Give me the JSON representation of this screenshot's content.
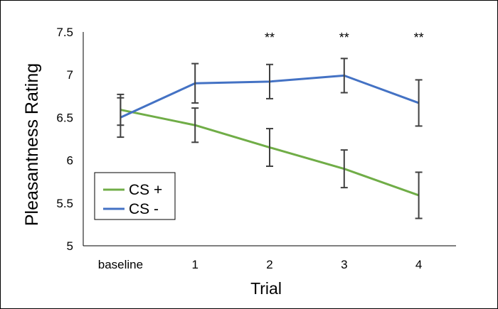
{
  "chart_data": {
    "type": "line",
    "title": "",
    "xlabel": "Trial",
    "ylabel": "Pleasantness Rating",
    "categories": [
      "baseline",
      "1",
      "2",
      "3",
      "4"
    ],
    "ylim": [
      5,
      7.5
    ],
    "yticks": [
      5,
      5.5,
      6,
      6.5,
      7,
      7.5
    ],
    "ytick_labels": [
      "5",
      "5.5",
      "6",
      "6.5",
      "7",
      "7.5"
    ],
    "grid": false,
    "legend_position": "bottom-left",
    "series": [
      {
        "name": "CS +",
        "color": "#70AD47",
        "values": [
          6.59,
          6.41,
          6.15,
          5.9,
          5.59
        ],
        "error": [
          0.18,
          0.2,
          0.22,
          0.22,
          0.27
        ]
      },
      {
        "name": "CS -",
        "color": "#4472C4",
        "values": [
          6.5,
          6.9,
          6.92,
          6.99,
          6.67
        ],
        "error": [
          0.23,
          0.23,
          0.2,
          0.2,
          0.27
        ]
      }
    ],
    "errorbar_color": "#404040",
    "annotations": [
      {
        "category": "2",
        "text": "**"
      },
      {
        "category": "3",
        "text": "**"
      },
      {
        "category": "4",
        "text": "**"
      }
    ]
  }
}
